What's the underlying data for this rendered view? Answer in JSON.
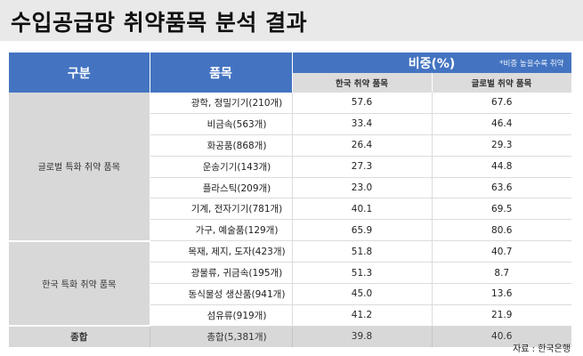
{
  "title": "수입공급망 취약품목 분석 결과",
  "table": {
    "headers": {
      "category": "구분",
      "item": "품목",
      "share": "비중(%)",
      "note": "*비중 높을수록 취약",
      "korea": "한국 취약 품목",
      "global": "글로벌 취약 품목"
    },
    "groups": [
      {
        "label": "글로벌 특화 취약 품목",
        "rows": [
          {
            "item": "광학, 정밀기기(210개)",
            "korea": "57.6",
            "global": "67.6"
          },
          {
            "item": "비금속(563개)",
            "korea": "33.4",
            "global": "46.4"
          },
          {
            "item": "화공품(868개)",
            "korea": "26.4",
            "global": "29.3"
          },
          {
            "item": "운송기기(143개)",
            "korea": "27.3",
            "global": "44.8"
          },
          {
            "item": "플라스틱(209개)",
            "korea": "23.0",
            "global": "63.6"
          },
          {
            "item": "기계, 전자기기(781개)",
            "korea": "40.1",
            "global": "69.5"
          },
          {
            "item": "가구, 예술품(129개)",
            "korea": "65.9",
            "global": "80.6"
          }
        ]
      },
      {
        "label": "한국 특화 취약 품목",
        "rows": [
          {
            "item": "목재, 제지, 도자(423개)",
            "korea": "51.8",
            "global": "40.7"
          },
          {
            "item": "광물류, 귀금속(195개)",
            "korea": "51.3",
            "global": "8.7"
          },
          {
            "item": "동식물성 생산품(941개)",
            "korea": "45.0",
            "global": "13.6"
          },
          {
            "item": "섬유류(919개)",
            "korea": "41.2",
            "global": "21.9"
          }
        ]
      }
    ],
    "total": {
      "label": "종합",
      "item": "총합(5,381개)",
      "korea": "39.8",
      "global": "40.6"
    }
  },
  "source": "자료 : 한국은행"
}
